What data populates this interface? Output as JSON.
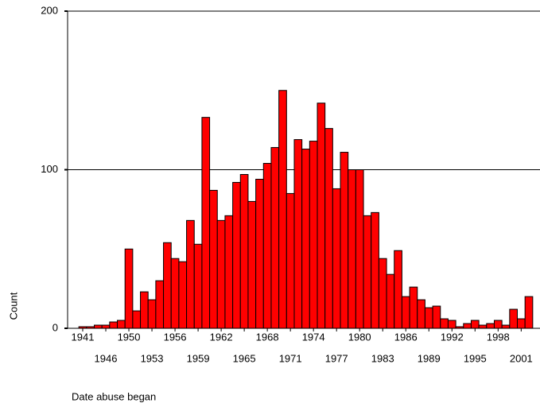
{
  "chart_data": {
    "type": "bar",
    "x_label": "Date abuse began",
    "y_label": "Count",
    "categories": [
      "1941",
      null,
      null,
      "1946",
      null,
      null,
      "1950",
      null,
      null,
      "1953",
      null,
      null,
      "1956",
      null,
      null,
      "1959",
      null,
      null,
      "1962",
      null,
      null,
      "1965",
      null,
      null,
      "1968",
      null,
      null,
      "1971",
      null,
      null,
      "1974",
      null,
      null,
      "1977",
      null,
      null,
      "1980",
      null,
      null,
      "1983",
      null,
      null,
      "1986",
      null,
      null,
      "1989",
      null,
      null,
      "1992",
      null,
      null,
      "1995",
      null,
      null,
      "1998",
      null,
      null,
      "2001",
      null
    ],
    "values": [
      1,
      1,
      2,
      2,
      4,
      5,
      50,
      11,
      23,
      18,
      30,
      54,
      44,
      42,
      68,
      53,
      133,
      87,
      68,
      71,
      92,
      97,
      80,
      94,
      104,
      114,
      150,
      85,
      119,
      113,
      118,
      142,
      126,
      88,
      111,
      100,
      100,
      71,
      73,
      44,
      34,
      49,
      20,
      26,
      18,
      13,
      14,
      6,
      5,
      1,
      3,
      5,
      2,
      3,
      5,
      2,
      12,
      6,
      20
    ],
    "color": "#ff0000",
    "ylim": [
      0,
      200
    ],
    "yticks": [
      0,
      100,
      200
    ],
    "grid": true
  }
}
